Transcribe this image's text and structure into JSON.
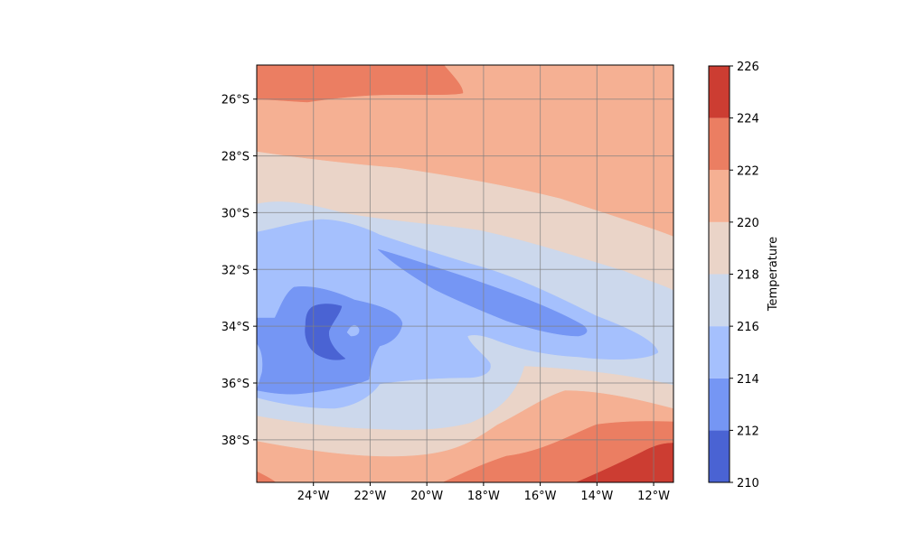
{
  "chart_data": {
    "type": "heatmap",
    "subtype": "filled-contour map",
    "x_ticks": [
      "24°W",
      "22°W",
      "20°W",
      "18°W",
      "16°W",
      "14°W",
      "12°W"
    ],
    "x_tick_values": [
      -24,
      -22,
      -20,
      -18,
      -16,
      -14,
      -12
    ],
    "y_ticks": [
      "26°S",
      "28°S",
      "30°S",
      "32°S",
      "34°S",
      "36°S",
      "38°S"
    ],
    "y_tick_values": [
      -26,
      -28,
      -30,
      -32,
      -34,
      -36,
      -38
    ],
    "xlim": [
      -26.0,
      -11.3
    ],
    "ylim": [
      -39.5,
      -24.8
    ],
    "grid": true,
    "colorbar": {
      "label": "Temperature",
      "levels": [
        210,
        212,
        214,
        216,
        218,
        220,
        222,
        224,
        226
      ],
      "tick_labels": [
        "210",
        "212",
        "214",
        "216",
        "218",
        "220",
        "222",
        "224",
        "226"
      ],
      "colormap": "coolwarm",
      "colors": [
        "#4a63d3",
        "#7596f4",
        "#a5c0fd",
        "#ccd8ec",
        "#ead4c8",
        "#f5b093",
        "#eb7e62",
        "#cc3d32"
      ]
    },
    "contour_regions": [
      {
        "band": "222-224",
        "description": "north-west strip",
        "polygon": [
          [
            -26.0,
            -24.8
          ],
          [
            -19.5,
            -24.8
          ],
          [
            -18.9,
            -25.5
          ],
          [
            -18.8,
            -25.8
          ],
          [
            -20,
            -25.9
          ],
          [
            -22,
            -25.9
          ],
          [
            -23.5,
            -26.1
          ],
          [
            -26.0,
            -26.1
          ]
        ]
      },
      {
        "band": "214-216",
        "description": "broad cold tongue",
        "polygon": [
          [
            -26.0,
            -30.6
          ],
          [
            -24,
            -30.5
          ],
          [
            -22,
            -30.3
          ],
          [
            -20,
            -30.4
          ],
          [
            -18,
            -30.9
          ],
          [
            -16,
            -31.6
          ],
          [
            -14.8,
            -32.5
          ],
          [
            -15.5,
            -33.6
          ],
          [
            -17,
            -34.2
          ],
          [
            -18.5,
            -34.4
          ],
          [
            -19.5,
            -35.3
          ],
          [
            -21,
            -36.1
          ],
          [
            -22.5,
            -36.4
          ],
          [
            -24,
            -36.5
          ],
          [
            -26.0,
            -36.5
          ]
        ]
      },
      {
        "band": "212-214",
        "description": "inner cold core and elongated lobe",
        "polygon": [
          [
            -26.0,
            -33.7
          ],
          [
            -25.3,
            -33.7
          ],
          [
            -24.9,
            -33.0
          ],
          [
            -23.6,
            -32.9
          ],
          [
            -22.0,
            -33.2
          ],
          [
            -21.0,
            -33.6
          ],
          [
            -21.3,
            -34.5
          ],
          [
            -22.0,
            -35.0
          ],
          [
            -22.2,
            -36.0
          ],
          [
            -23.5,
            -36.4
          ],
          [
            -26.0,
            -36.4
          ]
        ]
      },
      {
        "band": "210-212",
        "description": "coldest minimum near 24°W 34°S",
        "polygon": [
          [
            -24.2,
            -33.3
          ],
          [
            -23.0,
            -33.1
          ],
          [
            -23.2,
            -33.6
          ],
          [
            -23.5,
            -34.3
          ],
          [
            -22.9,
            -35.1
          ],
          [
            -23.8,
            -35.0
          ],
          [
            -24.4,
            -34.4
          ]
        ]
      },
      {
        "band": "224-226",
        "description": "south-east warm corner",
        "polygon": [
          [
            -14.7,
            -39.5
          ],
          [
            -13,
            -38.9
          ],
          [
            -12,
            -38.3
          ],
          [
            -11.3,
            -38.2
          ],
          [
            -11.3,
            -39.5
          ]
        ]
      }
    ]
  }
}
